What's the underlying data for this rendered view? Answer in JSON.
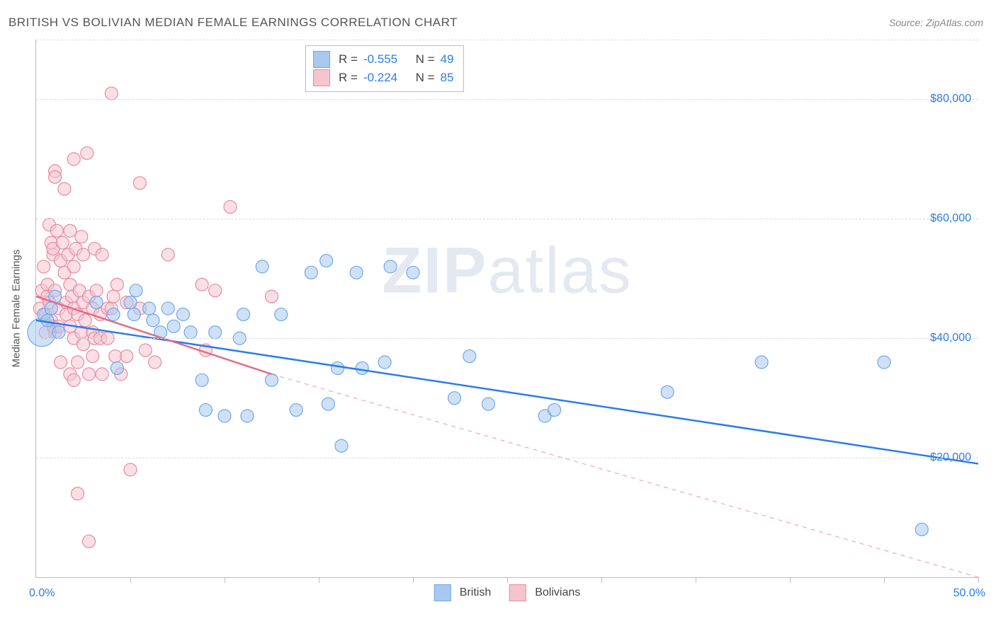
{
  "title": "BRITISH VS BOLIVIAN MEDIAN FEMALE EARNINGS CORRELATION CHART",
  "source_label": "Source: ZipAtlas.com",
  "y_axis_title": "Median Female Earnings",
  "watermark": {
    "part1": "ZIP",
    "part2": "atlas"
  },
  "chart": {
    "type": "scatter",
    "background_color": "#ffffff",
    "grid_color": "#dcdcdc",
    "axis_color": "#bdbdbd",
    "xlim": [
      0,
      50
    ],
    "ylim": [
      0,
      90000
    ],
    "x_tick_positions": [
      0,
      5,
      10,
      15,
      20,
      25,
      30,
      35,
      40,
      45,
      50
    ],
    "x_label_min": "0.0%",
    "x_label_max": "50.0%",
    "y_gridlines": [
      20000,
      40000,
      60000,
      80000
    ],
    "y_tick_labels": [
      "$20,000",
      "$40,000",
      "$60,000",
      "$80,000"
    ],
    "point_radius_default": 9,
    "point_stroke_width": 1.2,
    "trend_line_width": 2.5
  },
  "series": [
    {
      "id": "british",
      "label": "British",
      "color_fill": "#a8c8f0",
      "color_stroke": "#6fa8e8",
      "trend_color": "#2b7ce9",
      "trend": {
        "x1": 0,
        "y1": 43000,
        "x2": 50,
        "y2": 19000,
        "dash_after_x": 50
      },
      "R": "-0.555",
      "N": "49",
      "points": [
        {
          "x": 0.3,
          "y": 41000,
          "r": 20
        },
        {
          "x": 0.4,
          "y": 44000
        },
        {
          "x": 0.6,
          "y": 43000
        },
        {
          "x": 0.8,
          "y": 45000
        },
        {
          "x": 1.0,
          "y": 47000
        },
        {
          "x": 1.2,
          "y": 41000
        },
        {
          "x": 3.2,
          "y": 46000
        },
        {
          "x": 4.1,
          "y": 44000
        },
        {
          "x": 4.3,
          "y": 35000
        },
        {
          "x": 5.0,
          "y": 46000
        },
        {
          "x": 5.2,
          "y": 44000
        },
        {
          "x": 5.3,
          "y": 48000
        },
        {
          "x": 6.0,
          "y": 45000
        },
        {
          "x": 6.2,
          "y": 43000
        },
        {
          "x": 6.6,
          "y": 41000
        },
        {
          "x": 7.0,
          "y": 45000
        },
        {
          "x": 7.3,
          "y": 42000
        },
        {
          "x": 7.8,
          "y": 44000
        },
        {
          "x": 8.2,
          "y": 41000
        },
        {
          "x": 8.8,
          "y": 33000
        },
        {
          "x": 9.0,
          "y": 28000
        },
        {
          "x": 9.5,
          "y": 41000
        },
        {
          "x": 10.0,
          "y": 27000
        },
        {
          "x": 10.8,
          "y": 40000
        },
        {
          "x": 11.0,
          "y": 44000
        },
        {
          "x": 11.2,
          "y": 27000
        },
        {
          "x": 12.0,
          "y": 52000
        },
        {
          "x": 12.5,
          "y": 33000
        },
        {
          "x": 13.0,
          "y": 44000
        },
        {
          "x": 13.8,
          "y": 28000
        },
        {
          "x": 14.6,
          "y": 51000
        },
        {
          "x": 15.4,
          "y": 53000
        },
        {
          "x": 15.5,
          "y": 29000
        },
        {
          "x": 16.0,
          "y": 35000
        },
        {
          "x": 16.2,
          "y": 22000
        },
        {
          "x": 17.0,
          "y": 51000
        },
        {
          "x": 17.3,
          "y": 35000
        },
        {
          "x": 18.5,
          "y": 36000
        },
        {
          "x": 20.0,
          "y": 51000
        },
        {
          "x": 22.2,
          "y": 30000
        },
        {
          "x": 23.0,
          "y": 37000
        },
        {
          "x": 24.0,
          "y": 29000
        },
        {
          "x": 27.0,
          "y": 27000
        },
        {
          "x": 27.5,
          "y": 28000
        },
        {
          "x": 33.5,
          "y": 31000
        },
        {
          "x": 38.5,
          "y": 36000
        },
        {
          "x": 45.0,
          "y": 36000
        },
        {
          "x": 47.0,
          "y": 8000
        },
        {
          "x": 18.8,
          "y": 52000
        }
      ]
    },
    {
      "id": "bolivians",
      "label": "Bolivians",
      "color_fill": "#f6c4cf",
      "color_stroke": "#e98aa0",
      "trend_color": "#e56b87",
      "trend": {
        "x1": 0,
        "y1": 47000,
        "x2": 12.5,
        "y2": 34000,
        "dash_after_x": 12.5,
        "dash_end_x": 50,
        "dash_end_y": 0
      },
      "R": "-0.224",
      "N": "85",
      "points": [
        {
          "x": 0.2,
          "y": 45000
        },
        {
          "x": 0.3,
          "y": 48000
        },
        {
          "x": 0.4,
          "y": 52000
        },
        {
          "x": 0.5,
          "y": 44000
        },
        {
          "x": 0.5,
          "y": 41000
        },
        {
          "x": 0.6,
          "y": 49000
        },
        {
          "x": 0.6,
          "y": 47000
        },
        {
          "x": 0.7,
          "y": 59000
        },
        {
          "x": 0.7,
          "y": 46000
        },
        {
          "x": 0.8,
          "y": 56000
        },
        {
          "x": 0.8,
          "y": 43000
        },
        {
          "x": 0.9,
          "y": 54000
        },
        {
          "x": 0.9,
          "y": 55000
        },
        {
          "x": 0.9,
          "y": 42000
        },
        {
          "x": 1.0,
          "y": 68000
        },
        {
          "x": 1.0,
          "y": 67000
        },
        {
          "x": 1.0,
          "y": 48000
        },
        {
          "x": 1.0,
          "y": 41000
        },
        {
          "x": 1.1,
          "y": 58000
        },
        {
          "x": 1.2,
          "y": 45000
        },
        {
          "x": 1.2,
          "y": 42000
        },
        {
          "x": 1.3,
          "y": 53000
        },
        {
          "x": 1.3,
          "y": 36000
        },
        {
          "x": 1.4,
          "y": 56000
        },
        {
          "x": 1.5,
          "y": 65000
        },
        {
          "x": 1.5,
          "y": 51000
        },
        {
          "x": 1.6,
          "y": 44000
        },
        {
          "x": 1.6,
          "y": 46000
        },
        {
          "x": 1.7,
          "y": 54000
        },
        {
          "x": 1.8,
          "y": 58000
        },
        {
          "x": 1.8,
          "y": 49000
        },
        {
          "x": 1.8,
          "y": 42000
        },
        {
          "x": 1.8,
          "y": 34000
        },
        {
          "x": 1.9,
          "y": 47000
        },
        {
          "x": 2.0,
          "y": 70000
        },
        {
          "x": 2.0,
          "y": 52000
        },
        {
          "x": 2.0,
          "y": 45000
        },
        {
          "x": 2.0,
          "y": 40000
        },
        {
          "x": 2.0,
          "y": 33000
        },
        {
          "x": 2.1,
          "y": 55000
        },
        {
          "x": 2.2,
          "y": 44000
        },
        {
          "x": 2.2,
          "y": 36000
        },
        {
          "x": 2.2,
          "y": 14000
        },
        {
          "x": 2.3,
          "y": 48000
        },
        {
          "x": 2.4,
          "y": 57000
        },
        {
          "x": 2.4,
          "y": 41000
        },
        {
          "x": 2.5,
          "y": 54000
        },
        {
          "x": 2.5,
          "y": 46000
        },
        {
          "x": 2.5,
          "y": 39000
        },
        {
          "x": 2.6,
          "y": 43000
        },
        {
          "x": 2.7,
          "y": 71000
        },
        {
          "x": 2.8,
          "y": 47000
        },
        {
          "x": 2.8,
          "y": 34000
        },
        {
          "x": 2.8,
          "y": 6000
        },
        {
          "x": 3.0,
          "y": 45000
        },
        {
          "x": 3.0,
          "y": 41000
        },
        {
          "x": 3.0,
          "y": 37000
        },
        {
          "x": 3.1,
          "y": 55000
        },
        {
          "x": 3.1,
          "y": 40000
        },
        {
          "x": 3.2,
          "y": 48000
        },
        {
          "x": 3.4,
          "y": 44000
        },
        {
          "x": 3.4,
          "y": 40000
        },
        {
          "x": 3.5,
          "y": 54000
        },
        {
          "x": 3.5,
          "y": 34000
        },
        {
          "x": 3.8,
          "y": 45000
        },
        {
          "x": 3.8,
          "y": 40000
        },
        {
          "x": 4.0,
          "y": 81000
        },
        {
          "x": 4.0,
          "y": 45000
        },
        {
          "x": 4.1,
          "y": 47000
        },
        {
          "x": 4.2,
          "y": 37000
        },
        {
          "x": 4.3,
          "y": 49000
        },
        {
          "x": 4.5,
          "y": 34000
        },
        {
          "x": 4.8,
          "y": 46000
        },
        {
          "x": 4.8,
          "y": 37000
        },
        {
          "x": 5.0,
          "y": 18000
        },
        {
          "x": 5.5,
          "y": 66000
        },
        {
          "x": 5.5,
          "y": 45000
        },
        {
          "x": 5.8,
          "y": 38000
        },
        {
          "x": 6.3,
          "y": 36000
        },
        {
          "x": 7.0,
          "y": 54000
        },
        {
          "x": 8.8,
          "y": 49000
        },
        {
          "x": 9.0,
          "y": 38000
        },
        {
          "x": 9.5,
          "y": 48000
        },
        {
          "x": 10.3,
          "y": 62000
        },
        {
          "x": 12.5,
          "y": 47000
        }
      ]
    }
  ],
  "legend_stats": {
    "R_label": "R =",
    "N_label": "N ="
  },
  "legend_bottom": [
    {
      "label": "British",
      "fill": "#a8c8f0",
      "stroke": "#6fa8e8"
    },
    {
      "label": "Bolivians",
      "fill": "#f6c4cf",
      "stroke": "#e98aa0"
    }
  ]
}
